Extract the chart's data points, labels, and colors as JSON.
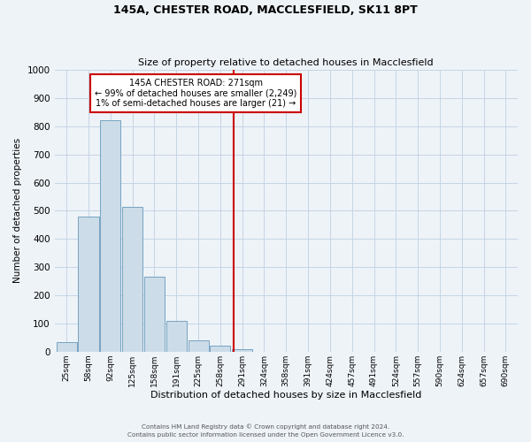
{
  "title": "145A, CHESTER ROAD, MACCLESFIELD, SK11 8PT",
  "subtitle": "Size of property relative to detached houses in Macclesfield",
  "xlabel": "Distribution of detached houses by size in Macclesfield",
  "ylabel": "Number of detached properties",
  "bar_values": [
    35,
    480,
    820,
    515,
    265,
    110,
    40,
    20,
    10,
    0,
    0,
    0,
    0,
    0,
    0,
    0,
    0,
    0,
    0,
    0,
    0
  ],
  "bin_labels": [
    "25sqm",
    "58sqm",
    "92sqm",
    "125sqm",
    "158sqm",
    "191sqm",
    "225sqm",
    "258sqm",
    "291sqm",
    "324sqm",
    "358sqm",
    "391sqm",
    "424sqm",
    "457sqm",
    "491sqm",
    "524sqm",
    "557sqm",
    "590sqm",
    "624sqm",
    "657sqm",
    "690sqm"
  ],
  "bar_color": "#ccdce8",
  "bar_edge_color": "#6699bb",
  "grid_color": "#c5d5e5",
  "vline_x": 7.62,
  "vline_color": "#cc0000",
  "annotation_title": "145A CHESTER ROAD: 271sqm",
  "annotation_line1": "← 99% of detached houses are smaller (2,249)",
  "annotation_line2": "1% of semi-detached houses are larger (21) →",
  "annotation_box_color": "white",
  "annotation_box_edge": "#cc0000",
  "ylim": [
    0,
    1000
  ],
  "yticks": [
    0,
    100,
    200,
    300,
    400,
    500,
    600,
    700,
    800,
    900,
    1000
  ],
  "footer1": "Contains HM Land Registry data © Crown copyright and database right 2024.",
  "footer2": "Contains public sector information licensed under the Open Government Licence v3.0.",
  "bg_color": "#eef3f8"
}
